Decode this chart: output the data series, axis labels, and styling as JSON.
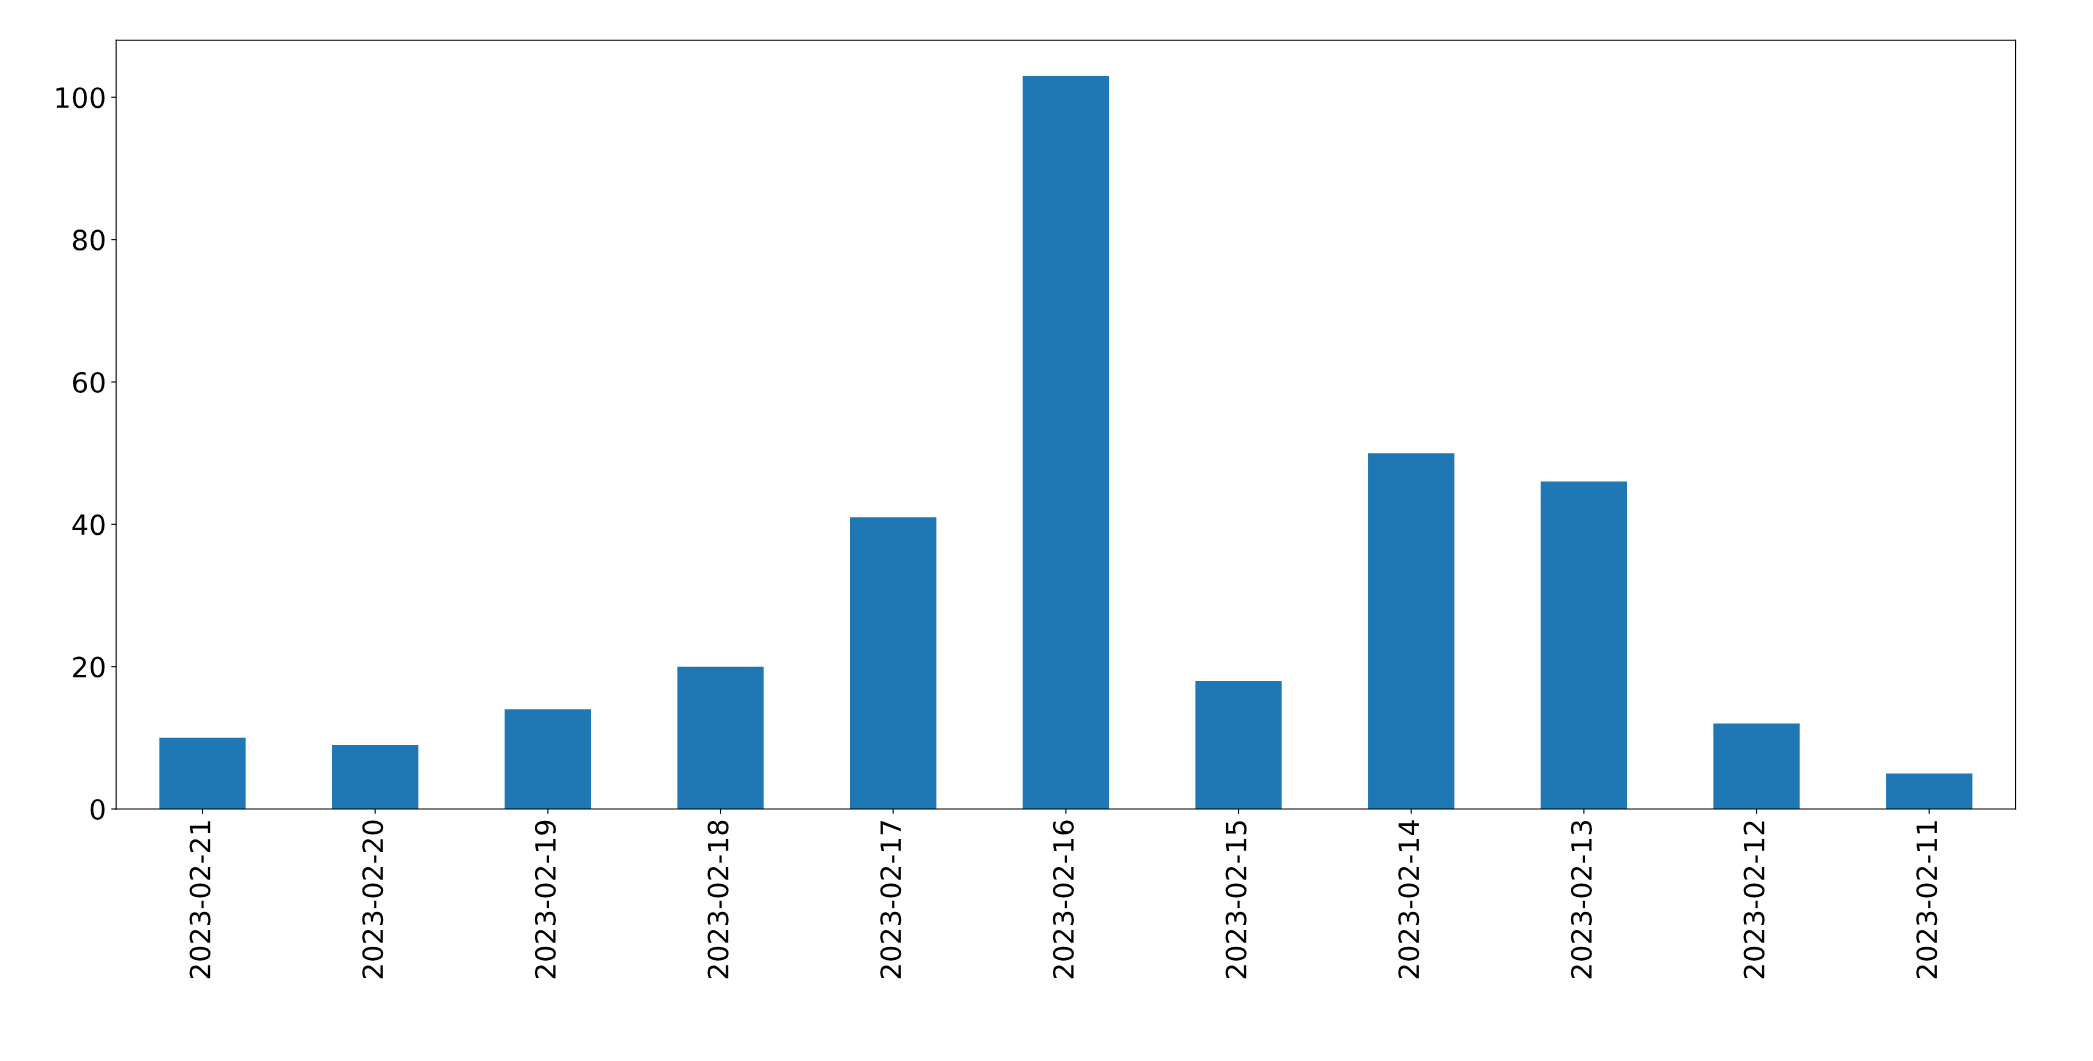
{
  "chart_data": {
    "type": "bar",
    "categories": [
      "2023-02-21",
      "2023-02-20",
      "2023-02-19",
      "2023-02-18",
      "2023-02-17",
      "2023-02-16",
      "2023-02-15",
      "2023-02-14",
      "2023-02-13",
      "2023-02-12",
      "2023-02-11"
    ],
    "values": [
      10,
      9,
      14,
      20,
      41,
      103,
      18,
      50,
      46,
      12,
      5
    ],
    "color": "#1f77b4",
    "ylim": [
      0,
      108
    ],
    "yticks": [
      0,
      20,
      40,
      60,
      80,
      100
    ],
    "grid": false,
    "legend": false
  }
}
